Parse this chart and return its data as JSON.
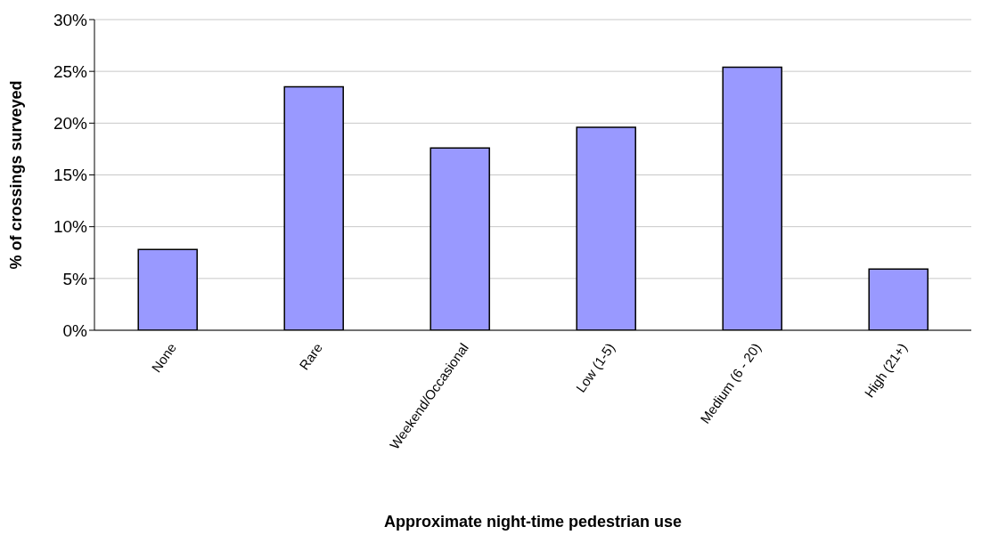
{
  "chart_data": {
    "type": "bar",
    "xlabel": "Approximate night-time pedestrian use",
    "ylabel": "% of crossings surveyed",
    "categories": [
      "None",
      "Rare",
      "Weekend/Occasional",
      "Low (1-5)",
      "Medium (6 - 20)",
      "High (21+)"
    ],
    "values": [
      7.8,
      23.5,
      17.6,
      19.6,
      25.4,
      5.9
    ],
    "color": "#9999ff",
    "ylim": [
      0,
      30
    ],
    "yticks": [
      {
        "value": 0,
        "label": "0%"
      },
      {
        "value": 5,
        "label": "5%"
      },
      {
        "value": 10,
        "label": "10%"
      },
      {
        "value": 15,
        "label": "15%"
      },
      {
        "value": 20,
        "label": "20%"
      },
      {
        "value": 25,
        "label": "25%"
      },
      {
        "value": 30,
        "label": "30%"
      }
    ],
    "grid": "y",
    "legend": false
  }
}
